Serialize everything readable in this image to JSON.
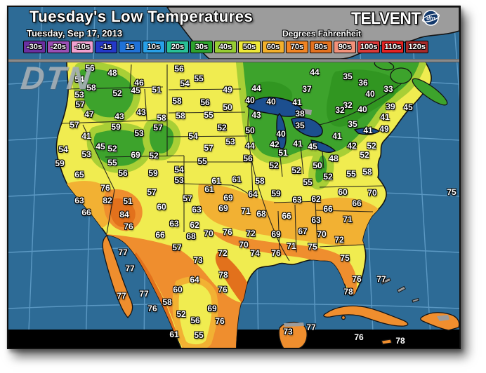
{
  "header": {
    "title": "Tuesday's Low Temperatures",
    "date": "Tuesday, Sep 17, 2013",
    "units_label": "Degrees Fahrenheit",
    "logo_text": "TELVENT",
    "logo_globe_text": "dtn",
    "watermark": "DTN"
  },
  "legend": {
    "items": [
      {
        "label": "-30s",
        "color": "#6a2fa0"
      },
      {
        "label": "-20s",
        "color": "#9a4fb5"
      },
      {
        "label": "-10s",
        "color": "#f0a0d0"
      },
      {
        "label": "-1s",
        "color": "#2438c8"
      },
      {
        "label": "1s",
        "color": "#2072d8"
      },
      {
        "label": "10s",
        "color": "#28a0e8"
      },
      {
        "label": "20s",
        "color": "#28bf97"
      },
      {
        "label": "30s",
        "color": "#2ea32e"
      },
      {
        "label": "40s",
        "color": "#97cc33"
      },
      {
        "label": "50s",
        "color": "#eee838"
      },
      {
        "label": "60s",
        "color": "#f2b02c"
      },
      {
        "label": "70s",
        "color": "#f08424"
      },
      {
        "label": "80s",
        "color": "#e2711f"
      },
      {
        "label": "90s",
        "color": "#f2917a"
      },
      {
        "label": "100s",
        "color": "#d93a3a"
      },
      {
        "label": "110s",
        "color": "#e32222"
      },
      {
        "label": "120s",
        "color": "#a52a2a"
      }
    ]
  },
  "colors": {
    "ocean": "#2d6b96",
    "graticule": "#64a1cb",
    "land_gray": "#9c9c9c",
    "lake": "#1c4f8f",
    "temp_yellow": "#f0ec50",
    "temp_yellow_green": "#a8cf36",
    "temp_green": "#3da32c",
    "temp_dark_green": "#2f9420",
    "temp_amber": "#f2b133",
    "temp_orange": "#ef8e2e",
    "temp_dark_orange": "#e2711c",
    "band_black": "#000000"
  },
  "map": {
    "temperature_labels": [
      [
        56,
        128,
        97
      ],
      [
        48,
        160,
        104
      ],
      [
        54,
        113,
        113
      ],
      [
        58,
        130,
        125
      ],
      [
        46,
        198,
        118
      ],
      [
        45,
        193,
        129
      ],
      [
        51,
        223,
        128
      ],
      [
        53,
        113,
        135
      ],
      [
        52,
        167,
        133
      ],
      [
        57,
        114,
        149
      ],
      [
        47,
        127,
        163
      ],
      [
        43,
        170,
        166
      ],
      [
        43,
        201,
        160
      ],
      [
        58,
        230,
        168
      ],
      [
        57,
        106,
        178
      ],
      [
        59,
        165,
        181
      ],
      [
        57,
        225,
        182
      ],
      [
        53,
        198,
        190
      ],
      [
        41,
        123,
        194
      ],
      [
        45,
        143,
        209
      ],
      [
        52,
        160,
        212
      ],
      [
        54,
        90,
        213
      ],
      [
        53,
        123,
        220
      ],
      [
        69,
        193,
        221
      ],
      [
        52,
        219,
        222
      ],
      [
        59,
        85,
        233
      ],
      [
        55,
        160,
        232
      ],
      [
        65,
        113,
        249
      ],
      [
        56,
        175,
        247
      ],
      [
        59,
        218,
        247
      ],
      [
        76,
        150,
        268
      ],
      [
        57,
        216,
        274
      ],
      [
        63,
        113,
        286
      ],
      [
        82,
        153,
        286
      ],
      [
        51,
        182,
        287
      ],
      [
        60,
        230,
        295
      ],
      [
        66,
        123,
        303
      ],
      [
        84,
        177,
        306
      ],
      [
        76,
        183,
        323
      ],
      [
        66,
        228,
        335
      ],
      [
        77,
        175,
        360
      ],
      [
        77,
        185,
        383
      ],
      [
        77,
        173,
        422
      ],
      [
        77,
        205,
        419
      ],
      [
        76,
        217,
        440
      ],
      [
        58,
        238,
        431
      ],
      [
        60,
        253,
        413
      ],
      [
        64,
        277,
        399
      ],
      [
        52,
        258,
        448
      ],
      [
        56,
        278,
        457
      ],
      [
        61,
        248,
        477
      ],
      [
        55,
        283,
        478
      ],
      [
        69,
        302,
        440
      ],
      [
        76,
        313,
        458
      ],
      [
        78,
        318,
        392
      ],
      [
        76,
        317,
        413
      ],
      [
        73,
        282,
        371
      ],
      [
        72,
        317,
        361
      ],
      [
        56,
        255,
        98
      ],
      [
        55,
        283,
        112
      ],
      [
        54,
        263,
        119
      ],
      [
        49,
        324,
        128
      ],
      [
        44,
        365,
        126
      ],
      [
        58,
        252,
        144
      ],
      [
        56,
        292,
        146
      ],
      [
        50,
        324,
        153
      ],
      [
        40,
        356,
        143
      ],
      [
        40,
        386,
        145
      ],
      [
        41,
        423,
        146
      ],
      [
        37,
        437,
        127
      ],
      [
        44,
        448,
        103
      ],
      [
        58,
        257,
        165
      ],
      [
        55,
        297,
        164
      ],
      [
        43,
        365,
        164
      ],
      [
        38,
        427,
        162
      ],
      [
        35,
        427,
        179
      ],
      [
        52,
        316,
        182
      ],
      [
        50,
        356,
        186
      ],
      [
        40,
        400,
        191
      ],
      [
        54,
        275,
        194
      ],
      [
        53,
        328,
        202
      ],
      [
        44,
        356,
        208
      ],
      [
        42,
        391,
        206
      ],
      [
        41,
        424,
        205
      ],
      [
        51,
        403,
        218
      ],
      [
        57,
        297,
        211
      ],
      [
        55,
        288,
        230
      ],
      [
        56,
        353,
        226
      ],
      [
        35,
        495,
        109
      ],
      [
        36,
        517,
        118
      ],
      [
        33,
        553,
        127
      ],
      [
        40,
        527,
        134
      ],
      [
        32,
        495,
        150
      ],
      [
        32,
        484,
        157
      ],
      [
        40,
        516,
        156
      ],
      [
        39,
        556,
        152
      ],
      [
        45,
        581,
        153
      ],
      [
        41,
        548,
        167
      ],
      [
        35,
        502,
        177
      ],
      [
        41,
        524,
        186
      ],
      [
        49,
        547,
        184
      ],
      [
        41,
        480,
        194
      ],
      [
        45,
        445,
        209
      ],
      [
        42,
        501,
        208
      ],
      [
        52,
        529,
        208
      ],
      [
        52,
        519,
        221
      ],
      [
        48,
        475,
        226
      ],
      [
        50,
        452,
        236
      ],
      [
        52,
        467,
        252
      ],
      [
        55,
        500,
        248
      ],
      [
        58,
        523,
        245
      ],
      [
        52,
        422,
        243
      ],
      [
        55,
        438,
        260
      ],
      [
        60,
        488,
        274
      ],
      [
        70,
        530,
        275
      ],
      [
        62,
        450,
        284
      ],
      [
        63,
        423,
        285
      ],
      [
        66,
        508,
        290
      ],
      [
        66,
        467,
        298
      ],
      [
        63,
        450,
        314
      ],
      [
        71,
        495,
        313
      ],
      [
        67,
        431,
        330
      ],
      [
        70,
        458,
        334
      ],
      [
        72,
        483,
        342
      ],
      [
        75,
        445,
        352
      ],
      [
        75,
        491,
        368
      ],
      [
        76,
        508,
        398
      ],
      [
        77,
        543,
        398
      ],
      [
        78,
        496,
        416
      ],
      [
        75,
        643,
        274
      ],
      [
        61,
        308,
        258
      ],
      [
        61,
        337,
        256
      ],
      [
        58,
        370,
        258
      ],
      [
        52,
        390,
        236
      ],
      [
        54,
        255,
        242
      ],
      [
        53,
        255,
        257
      ],
      [
        61,
        298,
        270
      ],
      [
        64,
        360,
        277
      ],
      [
        59,
        393,
        276
      ],
      [
        57,
        267,
        283
      ],
      [
        69,
        325,
        282
      ],
      [
        63,
        280,
        299
      ],
      [
        69,
        318,
        297
      ],
      [
        71,
        350,
        301
      ],
      [
        68,
        372,
        305
      ],
      [
        66,
        408,
        308
      ],
      [
        63,
        248,
        319
      ],
      [
        62,
        277,
        321
      ],
      [
        68,
        272,
        337
      ],
      [
        70,
        297,
        333
      ],
      [
        76,
        324,
        331
      ],
      [
        72,
        357,
        333
      ],
      [
        69,
        393,
        334
      ],
      [
        57,
        252,
        353
      ],
      [
        70,
        347,
        349
      ],
      [
        71,
        415,
        351
      ],
      [
        74,
        363,
        361
      ],
      [
        76,
        393,
        361
      ],
      [
        73,
        410,
        473
      ],
      [
        77,
        443,
        467
      ],
      [
        76,
        511,
        481
      ],
      [
        78,
        570,
        486
      ]
    ]
  }
}
